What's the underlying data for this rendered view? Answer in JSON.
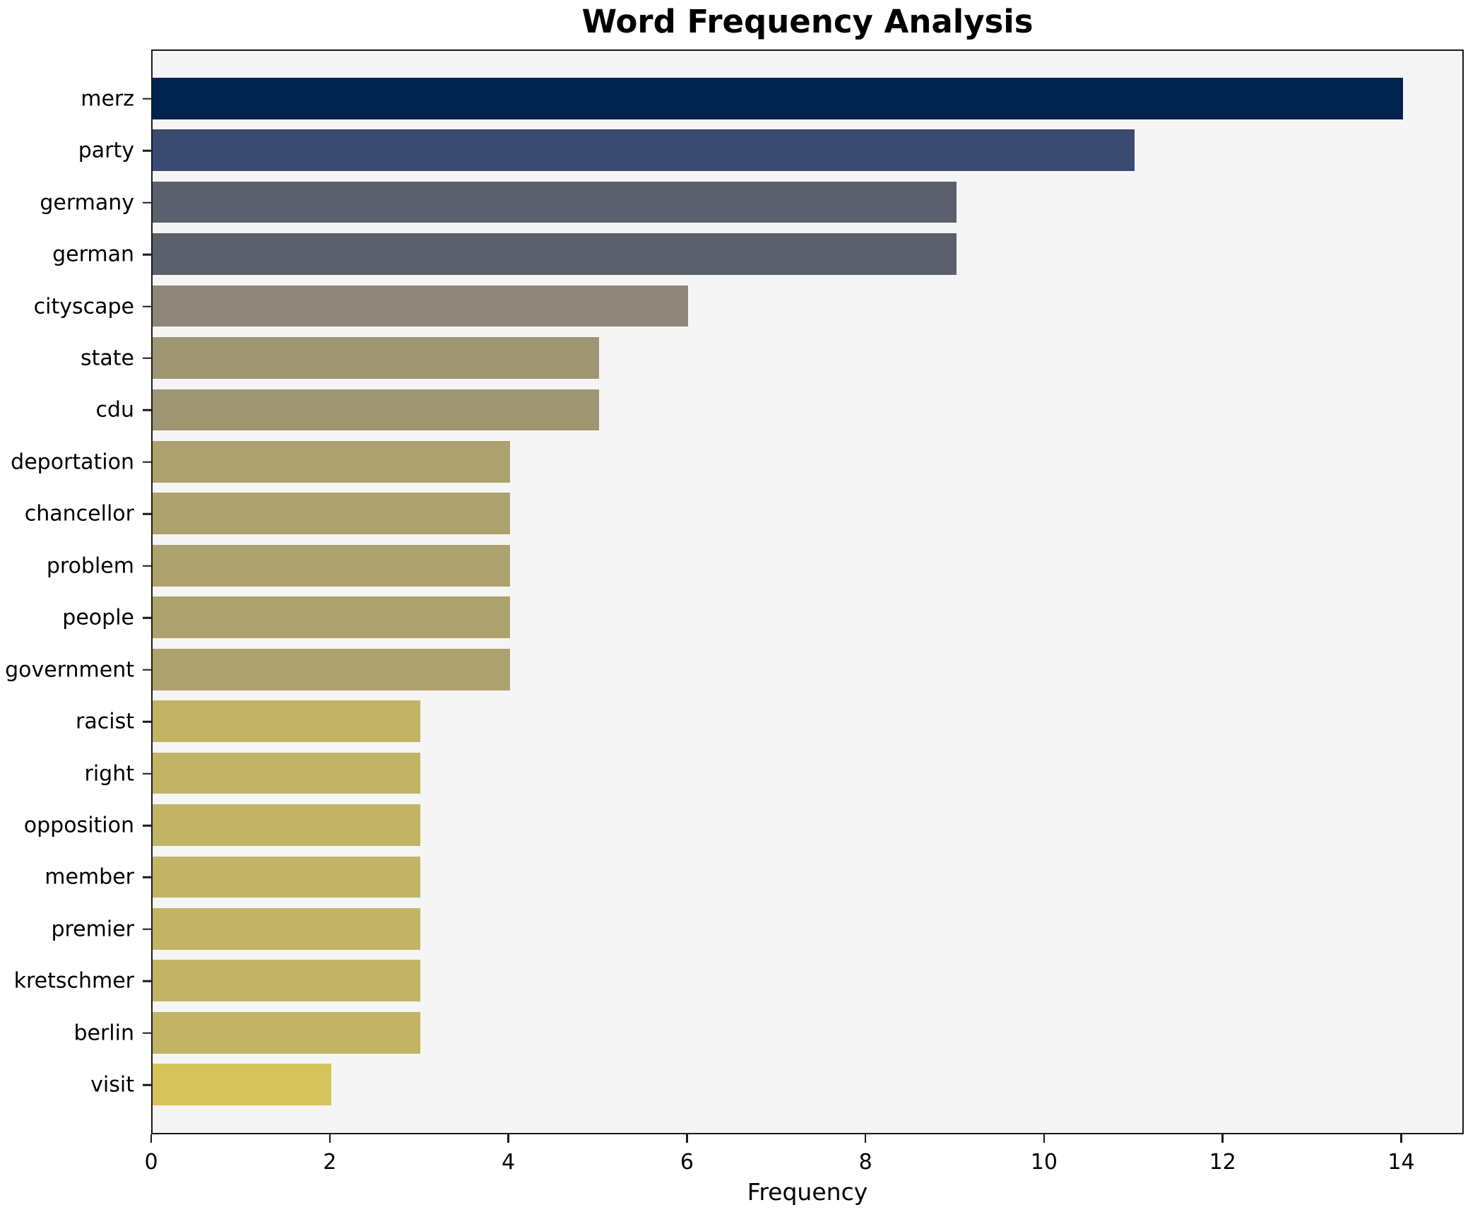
{
  "chart_data": {
    "type": "bar",
    "orientation": "horizontal",
    "title": "Word Frequency Analysis",
    "xlabel": "Frequency",
    "ylabel": "",
    "categories": [
      "merz",
      "party",
      "germany",
      "german",
      "cityscape",
      "state",
      "cdu",
      "deportation",
      "chancellor",
      "problem",
      "people",
      "government",
      "racist",
      "right",
      "opposition",
      "member",
      "premier",
      "kretschmer",
      "berlin",
      "visit"
    ],
    "values": [
      14,
      11,
      9,
      9,
      6,
      5,
      5,
      4,
      4,
      4,
      4,
      4,
      3,
      3,
      3,
      3,
      3,
      3,
      3,
      2
    ],
    "bar_colors": [
      "#00234f",
      "#3b4a71",
      "#5c606d",
      "#5c606d",
      "#8d8679",
      "#9e9672",
      "#9e9672",
      "#aca26d",
      "#aca26d",
      "#aca26d",
      "#aca26d",
      "#aca26d",
      "#c2b467",
      "#c2b467",
      "#c2b467",
      "#c2b467",
      "#c2b467",
      "#c2b467",
      "#c2b467",
      "#d6c35c"
    ],
    "xticks": [
      0,
      2,
      4,
      6,
      8,
      10,
      12,
      14
    ],
    "xlim": [
      0,
      14.7
    ],
    "grid": false,
    "legend": "none",
    "colors": {
      "plot_background": "#f5f5f5",
      "figure_background": "#ffffff",
      "spine": "#1a1a1a",
      "text": "#000000"
    }
  }
}
